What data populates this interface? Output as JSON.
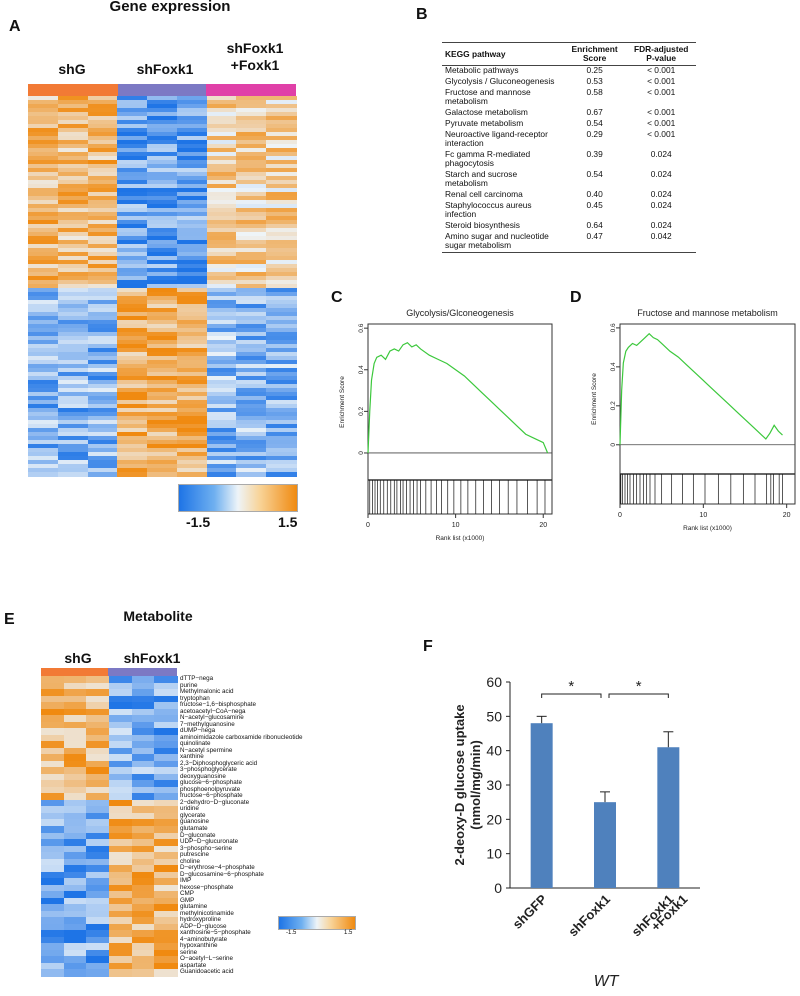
{
  "panels": {
    "A": "A",
    "B": "B",
    "C": "C",
    "D": "D",
    "E": "E",
    "F": "F"
  },
  "panelA": {
    "title": "Gene expression",
    "groups": [
      "shG",
      "shFoxk1",
      "shFoxk1",
      "+Foxk1"
    ],
    "group_colors": [
      "#f27a35",
      "#7c79c4",
      "#e040a8"
    ],
    "legend_min": "-1.5",
    "legend_max": "1.5"
  },
  "panelB": {
    "headers": [
      "KEGG pathway",
      "Enrichment Score",
      "FDR-adjusted P-value"
    ],
    "rows": [
      [
        "Metabolic pathways",
        "0.25",
        "< 0.001"
      ],
      [
        "Glycolysis / Gluconeogenesis",
        "0.53",
        "< 0.001"
      ],
      [
        "Fructose and mannose metabolism",
        "0.58",
        "< 0.001"
      ],
      [
        "Galactose metabolism",
        "0.67",
        "< 0.001"
      ],
      [
        "Pyruvate metabolism",
        "0.54",
        "< 0.001"
      ],
      [
        "Neuroactive ligand-receptor interaction",
        "0.29",
        "< 0.001"
      ],
      [
        "Fc gamma R-mediated phagocytosis",
        "0.39",
        "0.024"
      ],
      [
        "Starch and sucrose metabolism",
        "0.54",
        "0.024"
      ],
      [
        "Renal cell carcinoma",
        "0.40",
        "0.024"
      ],
      [
        "Staphylococcus aureus infection",
        "0.45",
        "0.024"
      ],
      [
        "Steroid biosynthesis",
        "0.64",
        "0.024"
      ],
      [
        "Amino sugar and nucleotide sugar metabolism",
        "0.47",
        "0.042"
      ]
    ]
  },
  "metabolites": [
    "dTTP−nega",
    "purine",
    "Methylmalonic acid",
    "tryptophan",
    "fructose−1,6−bisphosphate",
    "acetoacetyl−CoA−nega",
    "N−acetyl−glucosamine",
    "7−methylguanosine",
    "dUMP−nega",
    "aminoimidazole carboxamide ribonucleotide",
    "quinolinate",
    "N−acetyl spermine",
    "xanthine",
    "2,3−Diphosphoglyceric acid",
    "3−phosphoglycerate",
    "deoxyguanosine",
    "glucose−6−phosphate",
    "phosphoenolpyruvate",
    "fructose−6−phosphate",
    "2−dehydro−D−gluconate",
    "uridine",
    "glycerate",
    "guanosine",
    "glutamate",
    "D−gluconate",
    "UDP−D−glucuronate",
    "3−phospho−serine",
    "putrescine",
    "choline",
    "D−erythrose−4−phosphate",
    "D−glucosamine−6−phosphate",
    "IMP",
    "hexose−phosphate",
    "CMP",
    "GMP",
    "glutamine",
    "methylnicotinamide",
    "hydroxyproline",
    "ADP−D−glucose",
    "xanthosine−5−phosphate",
    "4−aminobutyrate",
    "hypoxanthine",
    "serine",
    "O−acetyl−L−serine",
    "aspartate",
    "Guanidoacetic acid"
  ],
  "panelE": {
    "title": "Metabolite",
    "groups": [
      "shG",
      "shFoxk1"
    ],
    "group_colors": [
      "#f27a35",
      "#7c79c4"
    ],
    "legend_min": "-1.5",
    "legend_max": "1.5"
  },
  "chart_data": [
    {
      "type": "line",
      "panel": "C",
      "title": "Glycolysis/Glconeogenesis",
      "xlabel": "Rank list (x1000)",
      "ylabel": "Enrichment Score",
      "xlim": [
        0,
        21
      ],
      "ylim": [
        -0.13,
        0.62
      ],
      "xticks": [
        "0",
        "10",
        "20"
      ],
      "yticks": [
        "0",
        "0.2",
        "0.4",
        "0.6"
      ],
      "line_color": "#3cc83c",
      "x": [
        0,
        0.2,
        0.4,
        0.7,
        1.0,
        1.5,
        2.0,
        2.5,
        3.0,
        3.5,
        4.0,
        4.5,
        5.0,
        5.5,
        6.0,
        7.0,
        8.0,
        9.0,
        10.0,
        11.0,
        12.0,
        13.0,
        14.0,
        15.0,
        16.0,
        17.0,
        18.0,
        19.0,
        20.0,
        20.5
      ],
      "y": [
        0,
        0.2,
        0.35,
        0.43,
        0.46,
        0.47,
        0.45,
        0.49,
        0.5,
        0.49,
        0.52,
        0.53,
        0.51,
        0.52,
        0.5,
        0.47,
        0.45,
        0.43,
        0.4,
        0.37,
        0.33,
        0.29,
        0.25,
        0.21,
        0.17,
        0.13,
        0.09,
        0.07,
        0.05,
        0.0
      ],
      "hits": [
        0.2,
        0.5,
        0.8,
        1.1,
        1.4,
        1.8,
        2.2,
        2.6,
        3.0,
        3.3,
        3.7,
        4.0,
        4.4,
        4.8,
        5.2,
        5.6,
        6.0,
        6.6,
        7.2,
        7.8,
        8.4,
        9.1,
        9.8,
        10.6,
        11.4,
        12.3,
        13.2,
        14.1,
        15.0,
        16.0,
        17.0,
        18.2,
        19.3,
        20.2
      ]
    },
    {
      "type": "line",
      "panel": "D",
      "title": "Fructose and mannose metabolism",
      "xlabel": "Rank list (x1000)",
      "ylabel": "Enrichment Score",
      "xlim": [
        0,
        21
      ],
      "ylim": [
        -0.15,
        0.62
      ],
      "xticks": [
        "0",
        "10",
        "20"
      ],
      "yticks": [
        "0",
        "0.2",
        "0.4",
        "0.6"
      ],
      "line_color": "#3cc83c",
      "x": [
        0,
        0.2,
        0.4,
        0.7,
        1.0,
        1.5,
        2.0,
        2.5,
        3.0,
        3.5,
        4.0,
        4.5,
        5.0,
        6.0,
        7.0,
        8.0,
        9.0,
        10.0,
        11.0,
        12.0,
        13.0,
        14.0,
        15.0,
        16.0,
        17.0,
        17.5,
        18.0,
        18.5,
        19.0,
        19.5
      ],
      "y": [
        0,
        0.28,
        0.42,
        0.48,
        0.5,
        0.52,
        0.51,
        0.53,
        0.55,
        0.57,
        0.55,
        0.54,
        0.52,
        0.48,
        0.45,
        0.41,
        0.37,
        0.33,
        0.29,
        0.25,
        0.21,
        0.17,
        0.13,
        0.09,
        0.05,
        0.03,
        0.06,
        0.1,
        0.07,
        0.05
      ],
      "hits": [
        0.1,
        0.3,
        0.6,
        0.9,
        1.2,
        1.6,
        2.0,
        2.4,
        2.8,
        3.2,
        3.6,
        4.2,
        5.0,
        6.2,
        7.5,
        8.8,
        10.2,
        11.8,
        13.3,
        14.8,
        16.2,
        17.6,
        18.1,
        18.4,
        19.1,
        19.5
      ]
    },
    {
      "type": "bar",
      "panel": "F",
      "categories": [
        "shGFP",
        "shFoxk1",
        "shFoxk1 +Foxk1"
      ],
      "category_lines": [
        [
          "shGFP"
        ],
        [
          "shFoxk1"
        ],
        [
          "shFoxk1",
          "+Foxk1"
        ]
      ],
      "values": [
        48,
        25,
        41
      ],
      "errors": [
        2,
        3,
        4.5
      ],
      "ylabel_lines": [
        "2-deoxy-D glucose uptake",
        "(nmol/mg/min)"
      ],
      "ylim": [
        0,
        60
      ],
      "yticks": [
        "0",
        "10",
        "20",
        "30",
        "40",
        "50",
        "60"
      ],
      "bar_color": "#4f81bd",
      "significance": [
        {
          "from": 0,
          "to": 1,
          "label": "*"
        },
        {
          "from": 1,
          "to": 2,
          "label": "*"
        }
      ],
      "footer": "WT"
    }
  ]
}
